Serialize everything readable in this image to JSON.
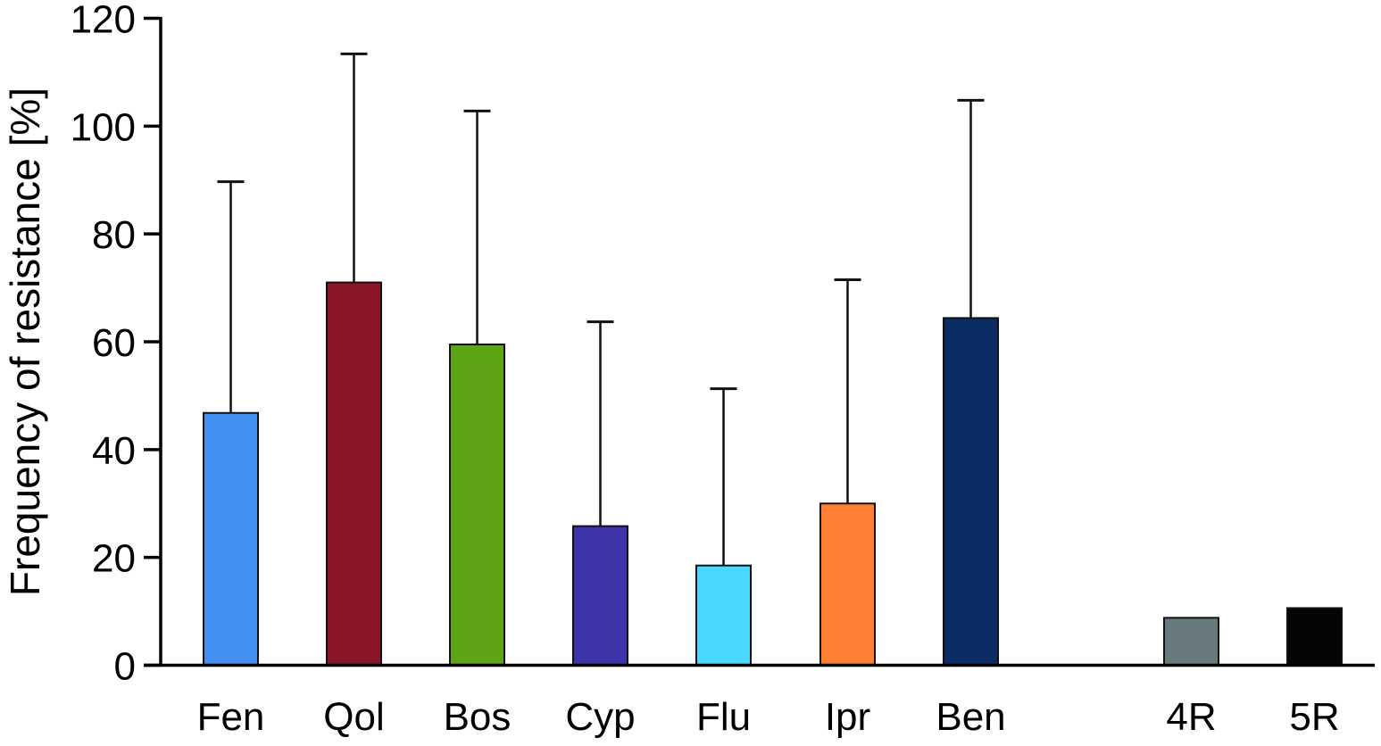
{
  "chart_data": {
    "type": "bar",
    "title": "",
    "xlabel": "",
    "ylabel": "Frequency of resistance [%]",
    "ylim": [
      0,
      120
    ],
    "yticks": [
      0,
      20,
      40,
      60,
      80,
      100,
      120
    ],
    "grid": false,
    "legend": null,
    "categories": [
      "Fen",
      "Qol",
      "Bos",
      "Cyp",
      "Flu",
      "Ipr",
      "Ben",
      "4R",
      "5R"
    ],
    "values": [
      46.8,
      71.0,
      59.5,
      25.8,
      18.5,
      30.0,
      64.4,
      8.8,
      10.6
    ],
    "error_upper": [
      89.7,
      113.4,
      102.8,
      63.7,
      51.3,
      71.5,
      104.8,
      null,
      null
    ],
    "colors": [
      "#4490f0",
      "#8a1529",
      "#5ea516",
      "#3d33aa",
      "#4ad8ff",
      "#ff8033",
      "#0c2d64",
      "#687a7c",
      "#050508"
    ]
  }
}
